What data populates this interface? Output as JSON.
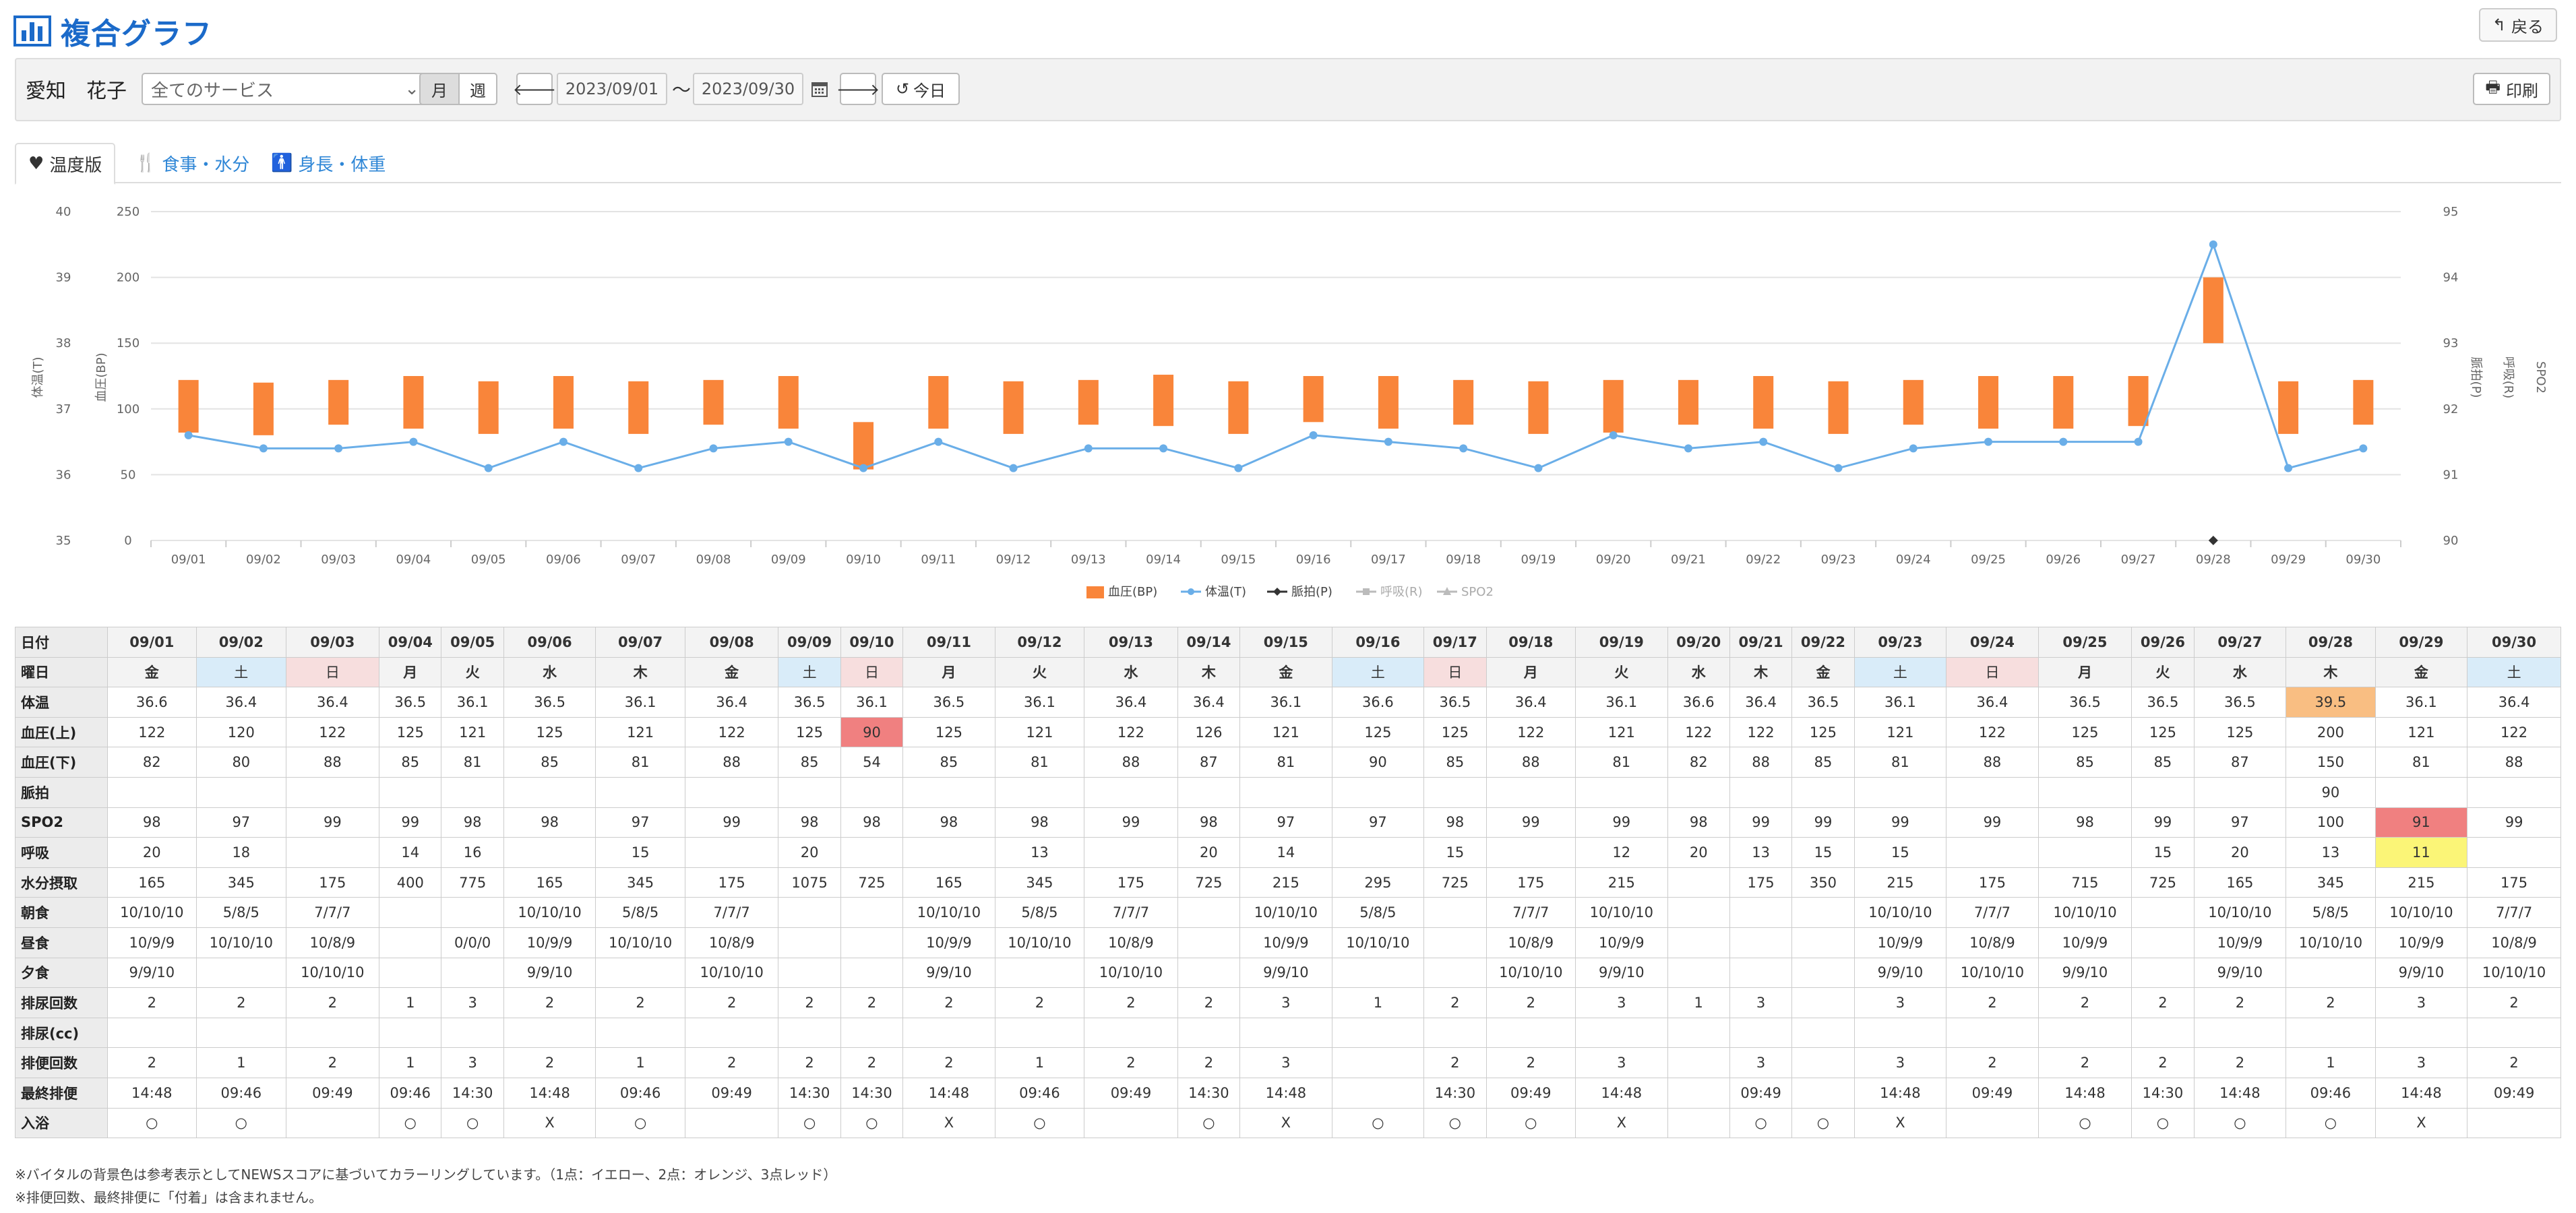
{
  "header": {
    "title": "複合グラフ",
    "back_label": "戻る"
  },
  "filter": {
    "user_name": "愛知　花子",
    "service_selected": "全てのサービス",
    "month_label": "月",
    "week_label": "週",
    "date_from": "2023/09/01",
    "tilde": "～",
    "date_to": "2023/09/30",
    "today_label": "今日",
    "print_label": "印刷"
  },
  "tabs": [
    {
      "label": "温度版"
    },
    {
      "label": "食事・水分"
    },
    {
      "label": "身長・体重"
    }
  ],
  "chart_data": {
    "type": "combo",
    "dates": [
      "09/01",
      "09/02",
      "09/03",
      "09/04",
      "09/05",
      "09/06",
      "09/07",
      "09/08",
      "09/09",
      "09/10",
      "09/11",
      "09/12",
      "09/13",
      "09/14",
      "09/15",
      "09/16",
      "09/17",
      "09/18",
      "09/19",
      "09/20",
      "09/21",
      "09/22",
      "09/23",
      "09/24",
      "09/25",
      "09/26",
      "09/27",
      "09/28",
      "09/29",
      "09/30"
    ],
    "bp_high": [
      122,
      120,
      122,
      125,
      121,
      125,
      121,
      122,
      125,
      90,
      125,
      121,
      122,
      126,
      121,
      125,
      125,
      122,
      121,
      122,
      122,
      125,
      121,
      122,
      125,
      125,
      125,
      200,
      121,
      122
    ],
    "bp_low": [
      82,
      80,
      88,
      85,
      81,
      85,
      81,
      88,
      85,
      54,
      85,
      81,
      88,
      87,
      81,
      90,
      85,
      88,
      81,
      82,
      88,
      85,
      81,
      88,
      85,
      85,
      87,
      150,
      81,
      88
    ],
    "temp": [
      36.6,
      36.4,
      36.4,
      36.5,
      36.1,
      36.5,
      36.1,
      36.4,
      36.5,
      36.1,
      36.5,
      36.1,
      36.4,
      36.4,
      36.1,
      36.6,
      36.5,
      36.4,
      36.1,
      36.6,
      36.4,
      36.5,
      36.1,
      36.4,
      36.5,
      36.5,
      36.5,
      39.5,
      36.1,
      36.4
    ],
    "pulse": [
      null,
      null,
      null,
      null,
      null,
      null,
      null,
      null,
      null,
      null,
      null,
      null,
      null,
      null,
      null,
      null,
      null,
      null,
      null,
      null,
      null,
      null,
      null,
      null,
      null,
      null,
      null,
      90,
      null,
      null
    ],
    "left_axis_temp": {
      "label": "体温(T)",
      "ticks": [
        "40",
        "39",
        "38",
        "37",
        "36",
        "35"
      ]
    },
    "left_axis_bp": {
      "label": "血圧(BP)",
      "ticks": [
        "250",
        "200",
        "150",
        "100",
        "50",
        "0"
      ]
    },
    "right_axis_pulse": {
      "label": "脈拍(P)",
      "ticks": [
        "95",
        "94",
        "93",
        "92",
        "91",
        "90"
      ]
    },
    "right_axis_resp": {
      "label": "呼吸(R)"
    },
    "right_axis_spo2": {
      "label": "SPO2"
    },
    "legend": [
      "血圧(BP)",
      "体温(T)",
      "脈拍(P)",
      "呼吸(R)",
      "SPO2"
    ],
    "colors": {
      "bp": "#f9853a",
      "temp": "#6aaee8",
      "pulse": "#333333",
      "resp": "#bbbbbb",
      "spo2": "#bbbbbb"
    }
  },
  "table": {
    "row_labels": [
      "日付",
      "曜日",
      "体温",
      "血圧(上)",
      "血圧(下)",
      "脈拍",
      "SPO2",
      "呼吸",
      "水分摂取",
      "朝食",
      "昼食",
      "夕食",
      "排尿回数",
      "排尿(cc)",
      "排便回数",
      "最終排便",
      "入浴"
    ],
    "weekdays": [
      "金",
      "土",
      "日",
      "月",
      "火",
      "水",
      "木",
      "金",
      "土",
      "日",
      "月",
      "火",
      "水",
      "木",
      "金",
      "土",
      "日",
      "月",
      "火",
      "水",
      "木",
      "金",
      "土",
      "日",
      "月",
      "火",
      "水",
      "木",
      "金",
      "土"
    ],
    "spo2": [
      "98",
      "97",
      "99",
      "99",
      "98",
      "98",
      "97",
      "99",
      "98",
      "98",
      "98",
      "98",
      "99",
      "98",
      "97",
      "97",
      "98",
      "99",
      "99",
      "98",
      "99",
      "99",
      "99",
      "99",
      "98",
      "99",
      "97",
      "100",
      "91",
      "99"
    ],
    "resp": [
      "20",
      "18",
      "",
      "14",
      "16",
      "",
      "15",
      "",
      "20",
      "",
      "",
      "13",
      "",
      "20",
      "14",
      "",
      "15",
      "",
      "12",
      "20",
      "13",
      "15",
      "15",
      "",
      "",
      "15",
      "20",
      "13",
      "11",
      ""
    ],
    "water": [
      "165",
      "345",
      "175",
      "400",
      "775",
      "165",
      "345",
      "175",
      "1075",
      "725",
      "165",
      "345",
      "175",
      "725",
      "215",
      "295",
      "725",
      "175",
      "215",
      "",
      "175",
      "350",
      "215",
      "175",
      "715",
      "725",
      "165",
      "345",
      "215",
      "175"
    ],
    "breakfast": [
      "10/10/10",
      "5/8/5",
      "7/7/7",
      "",
      "",
      "10/10/10",
      "5/8/5",
      "7/7/7",
      "",
      "",
      "10/10/10",
      "5/8/5",
      "7/7/7",
      "",
      "10/10/10",
      "5/8/5",
      "",
      "7/7/7",
      "10/10/10",
      "",
      "",
      "",
      "10/10/10",
      "7/7/7",
      "10/10/10",
      "",
      "10/10/10",
      "5/8/5",
      "10/10/10",
      "7/7/7"
    ],
    "lunch": [
      "10/9/9",
      "10/10/10",
      "10/8/9",
      "",
      "0/0/0",
      "10/9/9",
      "10/10/10",
      "10/8/9",
      "",
      "",
      "10/9/9",
      "10/10/10",
      "10/8/9",
      "",
      "10/9/9",
      "10/10/10",
      "",
      "10/8/9",
      "10/9/9",
      "",
      "",
      "",
      "10/9/9",
      "10/8/9",
      "10/9/9",
      "",
      "10/9/9",
      "10/10/10",
      "10/9/9",
      "10/8/9"
    ],
    "dinner": [
      "9/9/10",
      "",
      "10/10/10",
      "",
      "",
      "9/9/10",
      "",
      "10/10/10",
      "",
      "",
      "9/9/10",
      "",
      "10/10/10",
      "",
      "9/9/10",
      "",
      "",
      "10/10/10",
      "9/9/10",
      "",
      "",
      "",
      "9/9/10",
      "10/10/10",
      "9/9/10",
      "",
      "9/9/10",
      "",
      "9/9/10",
      "10/10/10"
    ],
    "urine_count": [
      "2",
      "2",
      "2",
      "1",
      "3",
      "2",
      "2",
      "2",
      "2",
      "2",
      "2",
      "2",
      "2",
      "2",
      "3",
      "1",
      "2",
      "2",
      "3",
      "1",
      "3",
      "",
      "3",
      "2",
      "2",
      "2",
      "2",
      "2",
      "3",
      "2"
    ],
    "urine_cc": [
      "",
      "",
      "",
      "",
      "",
      "",
      "",
      "",
      "",
      "",
      "",
      "",
      "",
      "",
      "",
      "",
      "",
      "",
      "",
      "",
      "",
      "",
      "",
      "",
      "",
      "",
      "",
      "",
      "",
      ""
    ],
    "stool_count": [
      "2",
      "1",
      "2",
      "1",
      "3",
      "2",
      "1",
      "2",
      "2",
      "2",
      "2",
      "1",
      "2",
      "2",
      "3",
      "",
      "2",
      "2",
      "3",
      "",
      "3",
      "",
      "3",
      "2",
      "2",
      "2",
      "2",
      "1",
      "3",
      "2"
    ],
    "last_stool": [
      "14:48",
      "09:46",
      "09:49",
      "09:46",
      "14:30",
      "14:48",
      "09:46",
      "09:49",
      "14:30",
      "14:30",
      "14:48",
      "09:46",
      "09:49",
      "14:30",
      "14:48",
      "",
      "14:30",
      "09:49",
      "14:48",
      "",
      "09:49",
      "",
      "14:48",
      "09:49",
      "14:48",
      "14:30",
      "14:48",
      "09:46",
      "14:48",
      "09:49"
    ],
    "bath": [
      "○",
      "○",
      "",
      "○",
      "○",
      "X",
      "○",
      "",
      "○",
      "○",
      "X",
      "○",
      "",
      "○",
      "X",
      "○",
      "○",
      "○",
      "X",
      "",
      "○",
      "○",
      "X",
      "",
      "○",
      "○",
      "○",
      "○",
      "X",
      ""
    ]
  },
  "notes": [
    "※バイタルの背景色は参考表示としてNEWSスコアに基づいてカラーリングしています。（1点：イエロー、2点：オレンジ、3点レッド）",
    "※排便回数、最終排便に「付着」は含まれません。"
  ]
}
